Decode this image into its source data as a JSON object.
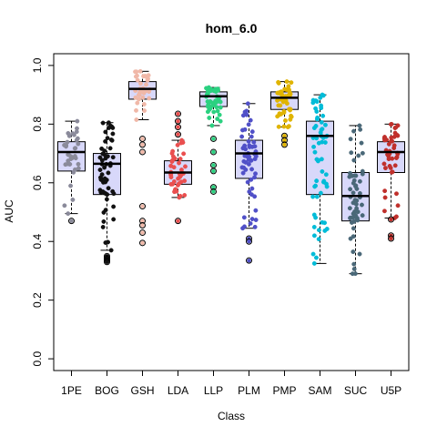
{
  "chart_data": {
    "type": "box",
    "title": "hom_6.0",
    "xlabel": "Class",
    "ylabel": "AUC",
    "ylim": [
      -0.04,
      1.04
    ],
    "yticks": [
      "0.0",
      "0.2",
      "0.4",
      "0.6",
      "0.8",
      "1.0"
    ],
    "categories": [
      "1PE",
      "BOG",
      "GSH",
      "LDA",
      "LLP",
      "PLM",
      "PMP",
      "SAM",
      "SUC",
      "U5P"
    ],
    "box_fill": "#d8d8fa",
    "boxes": [
      {
        "category": "1PE",
        "whisker_low": 0.495,
        "q1": 0.64,
        "median": 0.705,
        "q3": 0.74,
        "whisker_high": 0.81,
        "outliers": [
          0.47
        ],
        "color": "#8a8a9a",
        "n": 35
      },
      {
        "category": "BOG",
        "whisker_low": 0.37,
        "q1": 0.56,
        "median": 0.665,
        "q3": 0.7,
        "whisker_high": 0.805,
        "outliers": [
          0.35,
          0.345,
          0.34,
          0.335,
          0.33
        ],
        "color": "#111111",
        "n": 60
      },
      {
        "category": "GSH",
        "whisker_low": 0.815,
        "q1": 0.885,
        "median": 0.92,
        "q3": 0.945,
        "whisker_high": 0.98,
        "outliers": [
          0.75,
          0.73,
          0.705,
          0.52,
          0.47,
          0.455,
          0.43,
          0.395
        ],
        "color": "#f0b8a8",
        "n": 40
      },
      {
        "category": "LDA",
        "whisker_low": 0.55,
        "q1": 0.595,
        "median": 0.635,
        "q3": 0.675,
        "whisker_high": 0.745,
        "outliers": [
          0.835,
          0.81,
          0.79,
          0.765,
          0.47
        ],
        "color": "#ea4f4f",
        "n": 45
      },
      {
        "category": "LLP",
        "whisker_low": 0.795,
        "q1": 0.86,
        "median": 0.895,
        "q3": 0.91,
        "whisker_high": 0.925,
        "outliers": [
          0.75,
          0.705,
          0.66,
          0.64,
          0.585,
          0.57
        ],
        "color": "#2bd180",
        "n": 50
      },
      {
        "category": "PLM",
        "whisker_low": 0.445,
        "q1": 0.615,
        "median": 0.7,
        "q3": 0.745,
        "whisker_high": 0.87,
        "outliers": [
          0.41,
          0.4,
          0.335
        ],
        "color": "#5050c8",
        "n": 60
      },
      {
        "category": "PMP",
        "whisker_low": 0.79,
        "q1": 0.85,
        "median": 0.89,
        "q3": 0.91,
        "whisker_high": 0.945,
        "outliers": [
          0.76,
          0.745,
          0.73
        ],
        "color": "#e0b400",
        "n": 50
      },
      {
        "category": "SAM",
        "whisker_low": 0.325,
        "q1": 0.56,
        "median": 0.76,
        "q3": 0.81,
        "whisker_high": 0.9,
        "outliers": [],
        "color": "#00bcd8",
        "n": 60
      },
      {
        "category": "SUC",
        "whisker_low": 0.29,
        "q1": 0.47,
        "median": 0.555,
        "q3": 0.635,
        "whisker_high": 0.795,
        "outliers": [],
        "color": "#4a6878",
        "n": 55
      },
      {
        "category": "U5P",
        "whisker_low": 0.48,
        "q1": 0.635,
        "median": 0.705,
        "q3": 0.74,
        "whisker_high": 0.8,
        "outliers": [
          0.475,
          0.42,
          0.41
        ],
        "color": "#c0302c",
        "n": 45
      }
    ]
  }
}
